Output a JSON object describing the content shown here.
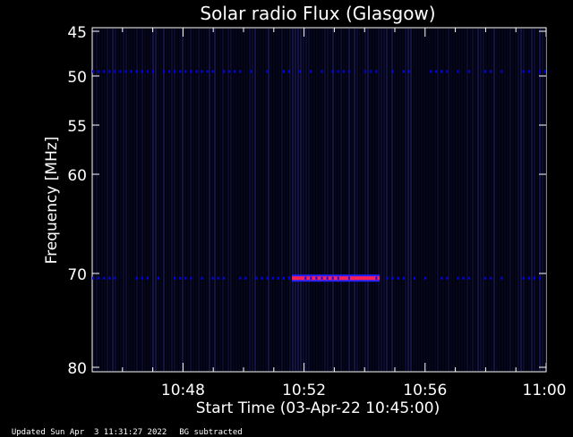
{
  "chart_data": {
    "type": "heatmap",
    "title": "Solar radio Flux (Glasgow)",
    "ylabel": "Frequency [MHz]",
    "xlabel": "Start Time (03-Apr-22 10:45:00)",
    "y_ticks": [
      "45",
      "50",
      "55",
      "60",
      "70",
      "80"
    ],
    "x_ticks": [
      "10:48",
      "10:52",
      "10:56",
      "11:00"
    ],
    "ylim": [
      80,
      45
    ],
    "xlim_minutes": [
      0,
      15
    ],
    "x_tick_minutes": [
      3,
      7,
      11,
      15
    ],
    "colors": {
      "background": "#000010",
      "low": "#1a1a66",
      "mid": "#0000ff",
      "high": "#ff2050"
    },
    "features": [
      {
        "name": "50 MHz band",
        "freq": 49.5,
        "start_min": 0,
        "end_min": 15,
        "intensity": "mid"
      },
      {
        "name": "70 MHz burst",
        "freq": 70.5,
        "start_min": 6.6,
        "end_min": 9.5,
        "intensity": "high"
      },
      {
        "name": "70 MHz band",
        "freq": 70.5,
        "start_min": 0,
        "end_min": 15,
        "intensity": "mid"
      }
    ]
  },
  "footer": {
    "updated": "Updated Sun Apr  3 11:31:27 2022",
    "bg": "BG subtracted"
  }
}
